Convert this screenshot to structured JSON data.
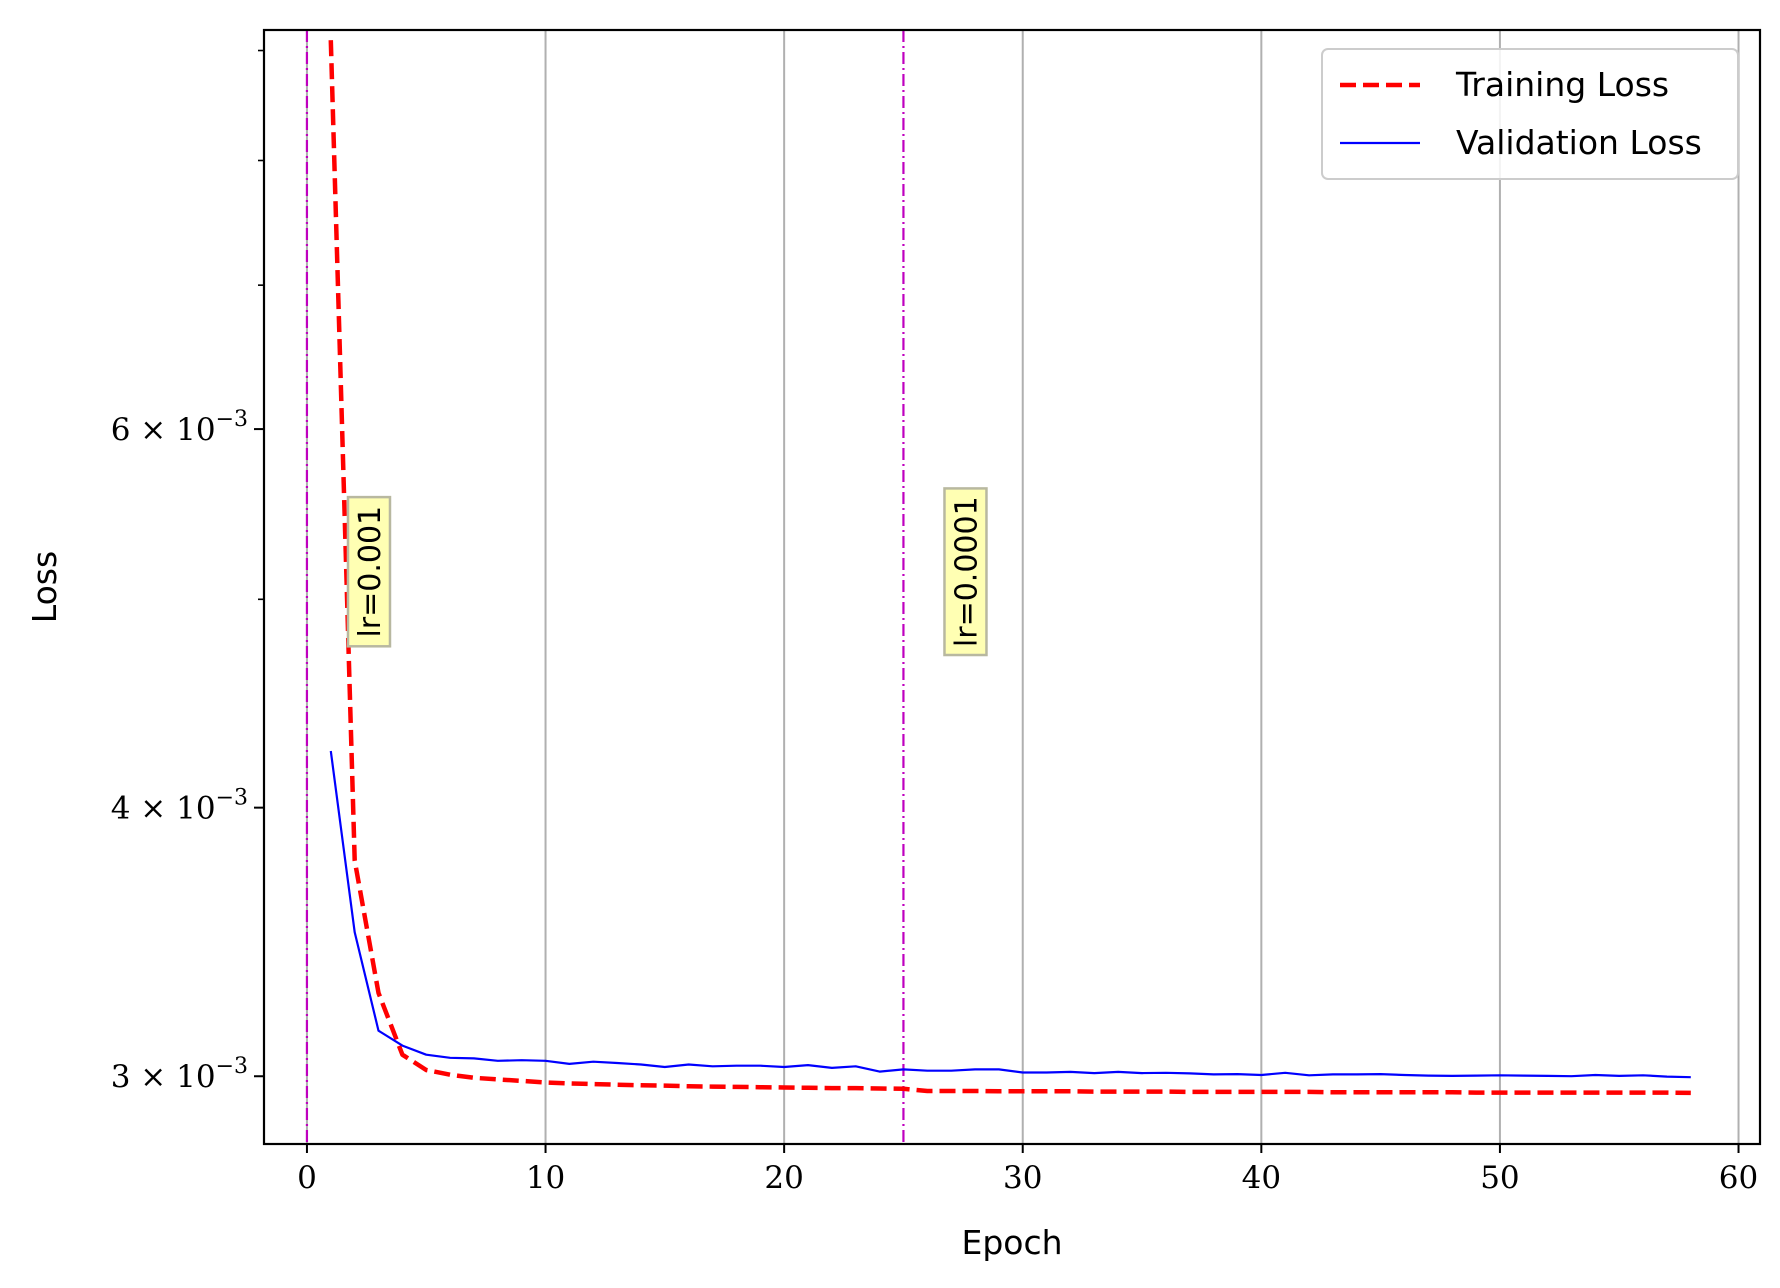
{
  "chart_data": {
    "type": "line",
    "xlabel": "Epoch",
    "ylabel": "Loss",
    "xlim": [
      -1.8,
      60.9
    ],
    "ylim_log": [
      0.00279,
      0.0092
    ],
    "y_scale": "log",
    "x_ticks": [
      0,
      10,
      20,
      30,
      40,
      50,
      60
    ],
    "x_tick_labels": [
      "0",
      "10",
      "20",
      "30",
      "40",
      "50",
      "60"
    ],
    "y_ticks": [
      0.003,
      0.004,
      0.006
    ],
    "y_tick_labels": [
      {
        "mantissa": "3",
        "exp": "−3"
      },
      {
        "mantissa": "4",
        "exp": "−3"
      },
      {
        "mantissa": "6",
        "exp": "−3"
      }
    ],
    "y_minor_ticks": [
      0.005,
      0.007,
      0.008,
      0.009
    ],
    "grid": "vertical major",
    "legend_position": "top-right",
    "series": [
      {
        "name": "Training Loss",
        "color": "#ff0000",
        "style": "dashed",
        "x": [
          1,
          2,
          3,
          4,
          5,
          6,
          7,
          8,
          9,
          10,
          11,
          12,
          13,
          14,
          15,
          16,
          17,
          18,
          19,
          20,
          21,
          22,
          23,
          24,
          25,
          26,
          27,
          28,
          29,
          30,
          31,
          32,
          33,
          34,
          35,
          36,
          37,
          38,
          39,
          40,
          41,
          42,
          43,
          44,
          45,
          46,
          47,
          48,
          49,
          50,
          51,
          52,
          53,
          54,
          55,
          56,
          57,
          58
        ],
        "y": [
          0.0091,
          0.00378,
          0.00328,
          0.00307,
          0.00302,
          0.003005,
          0.002995,
          0.00299,
          0.002985,
          0.00298,
          0.002977,
          0.002975,
          0.002973,
          0.002971,
          0.00297,
          0.002968,
          0.002967,
          0.002966,
          0.002965,
          0.002964,
          0.002963,
          0.002962,
          0.002962,
          0.002961,
          0.00296,
          0.002953,
          0.002953,
          0.002953,
          0.002952,
          0.002952,
          0.002952,
          0.002952,
          0.002951,
          0.002951,
          0.002951,
          0.002951,
          0.00295,
          0.00295,
          0.00295,
          0.00295,
          0.00295,
          0.00295,
          0.002949,
          0.002949,
          0.002949,
          0.002949,
          0.002949,
          0.002949,
          0.002948,
          0.002948,
          0.002948,
          0.002948,
          0.002948,
          0.002948,
          0.002948,
          0.002948,
          0.002948,
          0.002947
        ]
      },
      {
        "name": "Validation Loss",
        "color": "#0000ff",
        "style": "solid",
        "x": [
          1,
          2,
          3,
          4,
          5,
          6,
          7,
          8,
          9,
          10,
          11,
          12,
          13,
          14,
          15,
          16,
          17,
          18,
          19,
          20,
          21,
          22,
          23,
          24,
          25,
          26,
          27,
          28,
          29,
          30,
          31,
          32,
          33,
          34,
          35,
          36,
          37,
          38,
          39,
          40,
          41,
          42,
          43,
          44,
          45,
          46,
          47,
          48,
          49,
          50,
          51,
          52,
          53,
          54,
          55,
          56,
          57,
          58
        ],
        "y": [
          0.00425,
          0.0035,
          0.00315,
          0.0031,
          0.00307,
          0.00306,
          0.003058,
          0.00305,
          0.003052,
          0.00305,
          0.00304,
          0.003047,
          0.003043,
          0.003038,
          0.00303,
          0.003038,
          0.003032,
          0.003034,
          0.003034,
          0.00303,
          0.003036,
          0.003027,
          0.003032,
          0.003015,
          0.003022,
          0.003018,
          0.003018,
          0.003022,
          0.003022,
          0.003012,
          0.003012,
          0.003014,
          0.00301,
          0.003014,
          0.00301,
          0.003011,
          0.003009,
          0.003006,
          0.003007,
          0.003004,
          0.003011,
          0.003003,
          0.003006,
          0.003006,
          0.003007,
          0.003004,
          0.003002,
          0.003001,
          0.003002,
          0.003003,
          0.003002,
          0.003001,
          0.003,
          0.003004,
          0.003001,
          0.003003,
          0.002999,
          0.002997
        ]
      }
    ],
    "vlines": [
      {
        "x": 0,
        "color": "#bf00bf",
        "style": "dashdot"
      },
      {
        "x": 25,
        "color": "#bf00bf",
        "style": "dashdot"
      }
    ],
    "annotations": [
      {
        "text": "lr=0.001",
        "x": 2.6,
        "y": 0.00515,
        "rotation": 90,
        "bg": "#ffffb3"
      },
      {
        "text": "lr=0.0001",
        "x": 27.6,
        "y": 0.00515,
        "rotation": 90,
        "bg": "#ffffb3"
      }
    ]
  }
}
